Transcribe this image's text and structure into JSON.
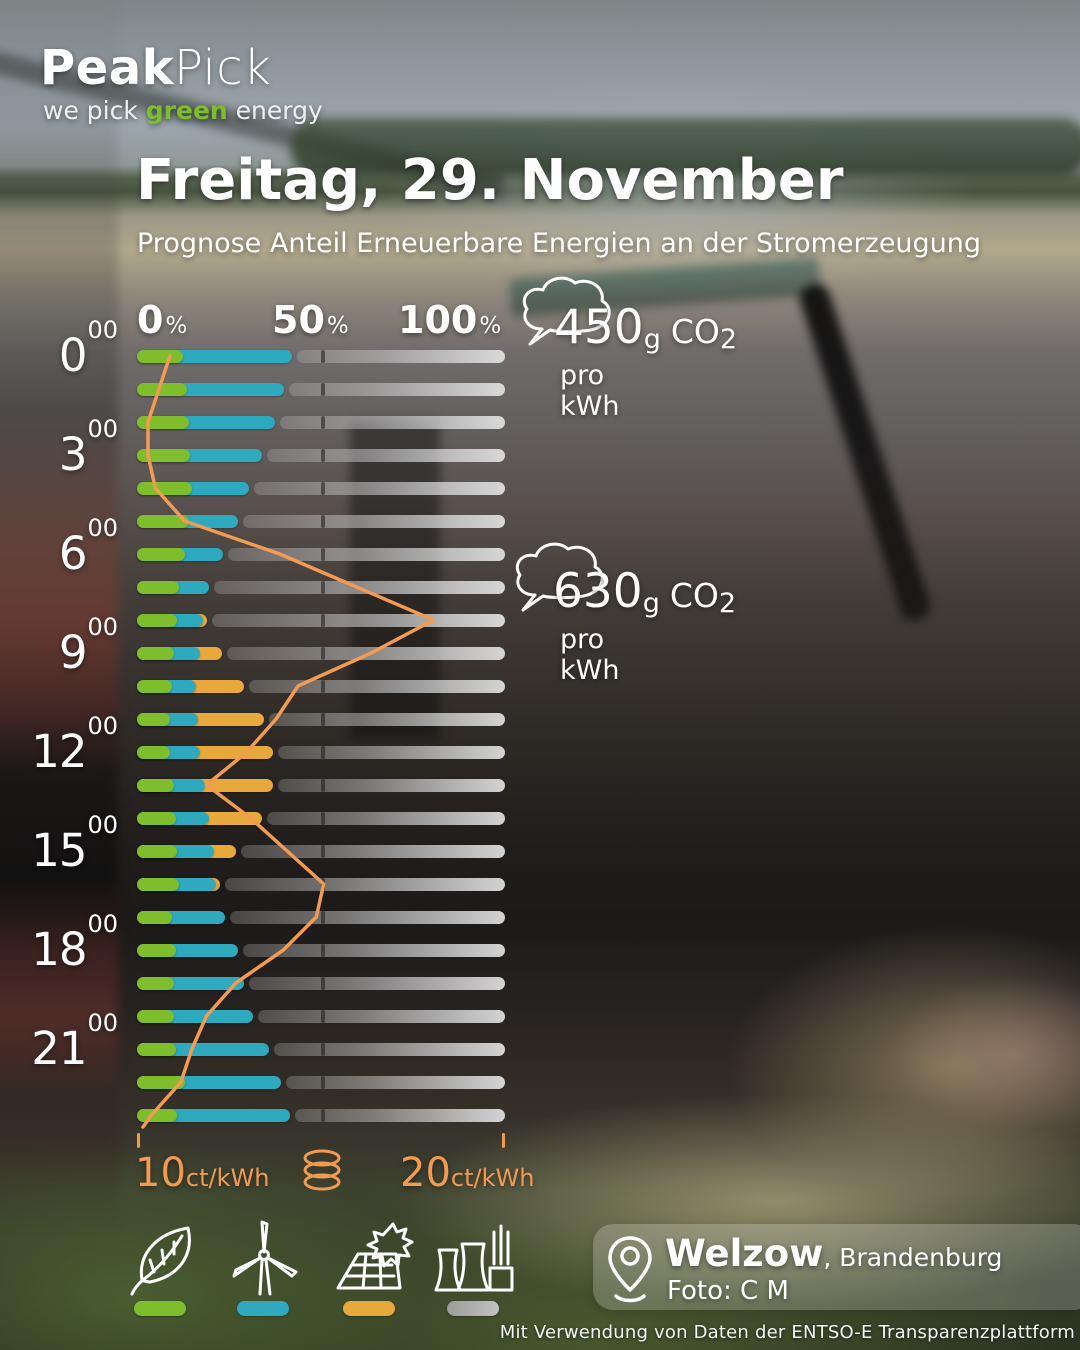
{
  "logo": {
    "part1": "Peak",
    "part2": "Pick",
    "tagline_pre": "we pick ",
    "tagline_green": "green",
    "tagline_post": " energy"
  },
  "header": {
    "title": "Freitag, 29. November",
    "subtitle": "Prognose Anteil Erneuerbare Energien an der Stromerzeugung"
  },
  "axis": {
    "p0": {
      "num": "0",
      "pct": "%"
    },
    "p50": {
      "num": "50",
      "pct": "%"
    },
    "p100": {
      "num": "100",
      "pct": "%"
    }
  },
  "co2_annotations": [
    {
      "value": "450",
      "g": "g",
      "gas": "CO",
      "sub2": "2",
      "line2": "pro kWh",
      "icon": "cloud-icon"
    },
    {
      "value": "630",
      "g": "g",
      "gas": "CO",
      "sub2": "2",
      "line2": "pro kWh",
      "icon": "cloud-icon"
    }
  ],
  "price_legend": {
    "left_value": "10",
    "left_unit": "ct/kWh",
    "right_value": "20",
    "right_unit": "ct/kWh",
    "icon": "coin-stack-icon"
  },
  "energy_legend": [
    {
      "name": "biomass",
      "icon": "leaf-icon",
      "color": "#7ebe2c"
    },
    {
      "name": "wind",
      "icon": "wind-turbine-icon",
      "color": "#2fa9bd"
    },
    {
      "name": "solar",
      "icon": "solar-panel-icon",
      "color": "#e7a93c"
    },
    {
      "name": "conventional",
      "icon": "power-plant-icon",
      "color": "#a9a9a9"
    }
  ],
  "location": {
    "name": "Welzow",
    "region": ", Brandenburg",
    "credit": "Foto: C M"
  },
  "footer": "Mit Verwendung von Daten der ENTSO-E Transparenzplattform",
  "chart_data": {
    "type": "bar",
    "subtype": "horizontal-stacked-with-line",
    "title": "Prognose Anteil Erneuerbare Energien an der Stromerzeugung",
    "x_axis": {
      "unit": "%",
      "ticks": [
        0,
        50,
        100
      ],
      "range": [
        0,
        100
      ]
    },
    "y_axis": {
      "unit": "hour",
      "labels_shown": [
        "0",
        "3",
        "6",
        "9",
        "12",
        "15",
        "18",
        "21"
      ],
      "superscript": "00"
    },
    "hours": [
      0,
      1,
      2,
      3,
      4,
      5,
      6,
      7,
      8,
      9,
      10,
      11,
      12,
      13,
      14,
      15,
      16,
      17,
      18,
      19,
      20,
      21,
      22,
      23
    ],
    "series": [
      {
        "name": "biomass_pct",
        "color": "#7ebe2c",
        "values": [
          12.5,
          13.5,
          14,
          14.5,
          15,
          14,
          13,
          11.5,
          11,
          10,
          9.5,
          9,
          9,
          10,
          10.5,
          11,
          11.5,
          9.5,
          10.5,
          10,
          10,
          10.5,
          13,
          11
        ]
      },
      {
        "name": "wind_pct",
        "color": "#2fa9bd",
        "values": [
          29.5,
          26.5,
          23.5,
          19.5,
          15.5,
          13.5,
          10.5,
          8,
          7,
          7,
          6.5,
          7.5,
          8,
          8.5,
          9,
          10,
          10,
          14.5,
          17,
          19,
          21.5,
          25.5,
          26,
          30.5
        ]
      },
      {
        "name": "solar_pct",
        "color": "#e7a93c",
        "values": [
          0,
          0,
          0,
          0,
          0,
          0,
          0,
          0,
          1,
          6,
          13,
          18,
          20,
          18.5,
          14.5,
          6,
          1,
          0,
          0,
          0,
          0,
          0,
          0,
          0
        ]
      }
    ],
    "price_line": {
      "name": "electricity_price",
      "color": "#f29b52",
      "unit": "ct/kWh",
      "axis_range": [
        10,
        20
      ],
      "values": [
        10.9,
        10.6,
        10.3,
        10.3,
        10.5,
        11.3,
        13.9,
        16.0,
        18.1,
        16.4,
        14.4,
        13.8,
        13.0,
        11.9,
        13.1,
        14.1,
        15.1,
        14.9,
        14.0,
        12.7,
        11.9,
        11.5,
        11.2,
        10.4
      ]
    },
    "co2_intensity": [
      {
        "label": "450g CO2 pro kWh",
        "points_at": "high renewable share (night)"
      },
      {
        "label": "630g CO2 pro kWh",
        "points_at": "low renewable share (8:00)"
      }
    ]
  }
}
